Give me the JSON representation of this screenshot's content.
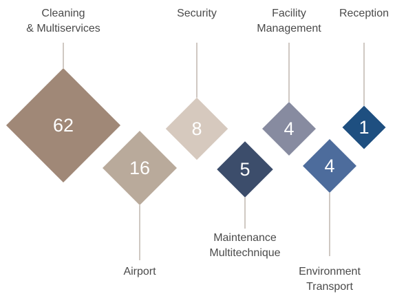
{
  "chart_data": {
    "type": "diamond",
    "categories": [
      [
        "Cleaning",
        "& Multiservices"
      ],
      [
        "Airport"
      ],
      [
        "Security"
      ],
      [
        "Maintenance",
        "Multitechnique"
      ],
      [
        "Facility",
        "Management"
      ],
      [
        "Environment",
        "Transport"
      ],
      [
        "Reception"
      ]
    ],
    "values": [
      62,
      16,
      8,
      5,
      4,
      4,
      1
    ],
    "colors": [
      "#a08877",
      "#b9aa9b",
      "#d6c9be",
      "#3c4d6b",
      "#878ba0",
      "#4d6c9c",
      "#1e4f80"
    ]
  }
}
